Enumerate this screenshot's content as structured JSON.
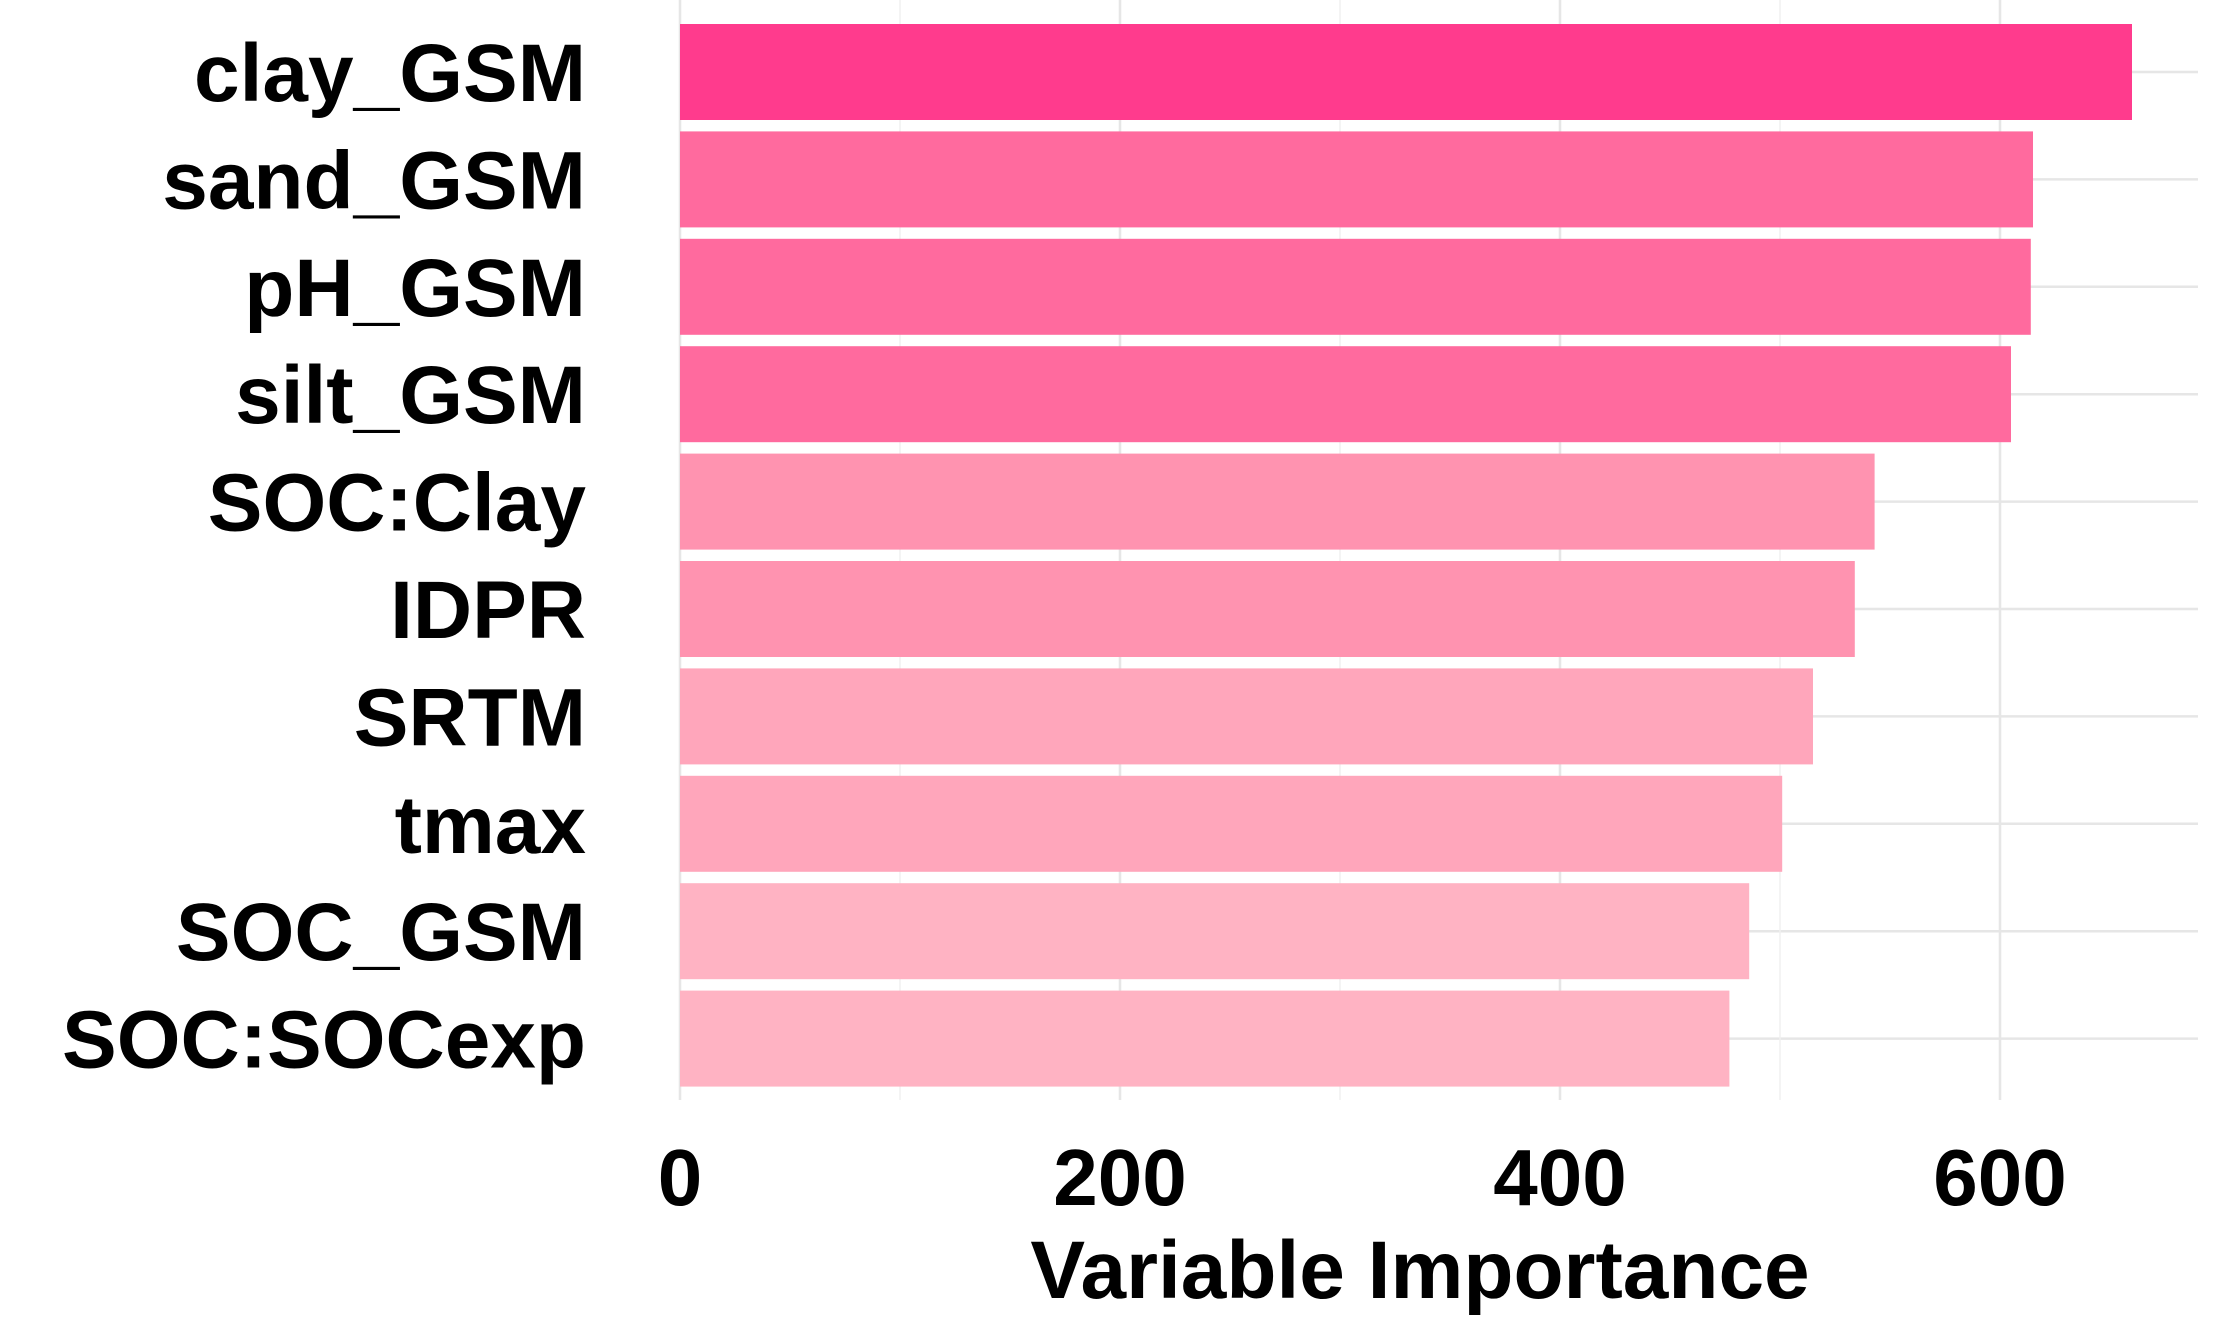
{
  "chart_data": {
    "type": "bar",
    "orientation": "horizontal",
    "title": "",
    "xlabel": "Variable Importance",
    "ylabel": "",
    "xlim": [
      0,
      690
    ],
    "xticks": [
      0,
      200,
      400,
      600
    ],
    "grid": true,
    "legend": "none",
    "categories": [
      "clay_GSM",
      "sand_GSM",
      "pH_GSM",
      "silt_GSM",
      "SOC:Clay",
      "IDPR",
      "SRTM",
      "tmax",
      "SOC_GSM",
      "SOC:SOCexp"
    ],
    "values": [
      660,
      615,
      614,
      605,
      543,
      534,
      515,
      501,
      486,
      477
    ],
    "colors": [
      "#ff3b8d",
      "#ff6a9e",
      "#ff6a9e",
      "#ff6a9e",
      "#ff93b0",
      "#ff93b0",
      "#ffa6bb",
      "#ffa6bb",
      "#ffb3c3",
      "#ffb3c3"
    ]
  }
}
